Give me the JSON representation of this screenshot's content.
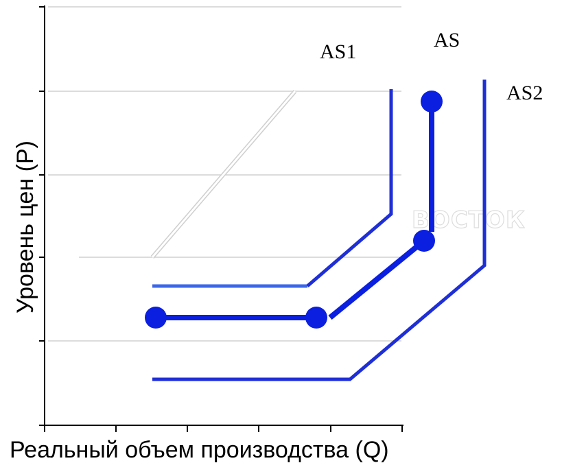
{
  "axes": {
    "y_title": "Уровень цен (Р)",
    "x_title": "Реальный объем производства (Q)"
  },
  "curves": {
    "as1": {
      "label": "AS1",
      "color": "#1f2fd6"
    },
    "as": {
      "label": "AS",
      "color": "#0b1fe0"
    },
    "as2": {
      "label": "AS2",
      "color": "#1f2fd6"
    }
  },
  "watermark": {
    "text": "ВОСТОК"
  },
  "colors": {
    "axis": "#000000",
    "gridline": "#d0d0d0",
    "as1_bottom": "#3a66e8"
  }
}
